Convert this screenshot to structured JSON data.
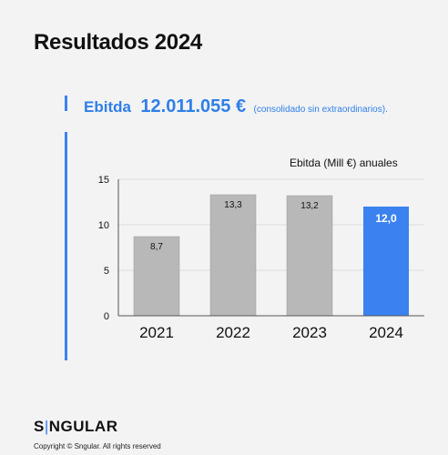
{
  "page": {
    "title": "Resultados 2024"
  },
  "ebitda": {
    "label": "Ebitda",
    "value": "12.011.055 €",
    "note": "(consolidado sin extraordinarios)."
  },
  "chart_data": {
    "type": "bar",
    "title": "Ebitda (Mill €) anuales",
    "categories": [
      "2021",
      "2022",
      "2023",
      "2024"
    ],
    "values": [
      8.7,
      13.3,
      13.2,
      12.0
    ],
    "value_labels": [
      "8,7",
      "13,3",
      "13,2",
      "12,0"
    ],
    "ylim": [
      0,
      15
    ],
    "yticks": [
      0,
      5,
      10,
      15
    ],
    "grid": true,
    "highlight_index": 3,
    "colors": {
      "bar": "#b8b8b8",
      "highlight": "#3b82f0",
      "grid": "#dcdcdc"
    }
  },
  "footer": {
    "logo_prefix": "S",
    "logo_sep": "|",
    "logo_suffix": "NGULAR",
    "copyright": "Copyright © Sngular. All rights reserved"
  }
}
